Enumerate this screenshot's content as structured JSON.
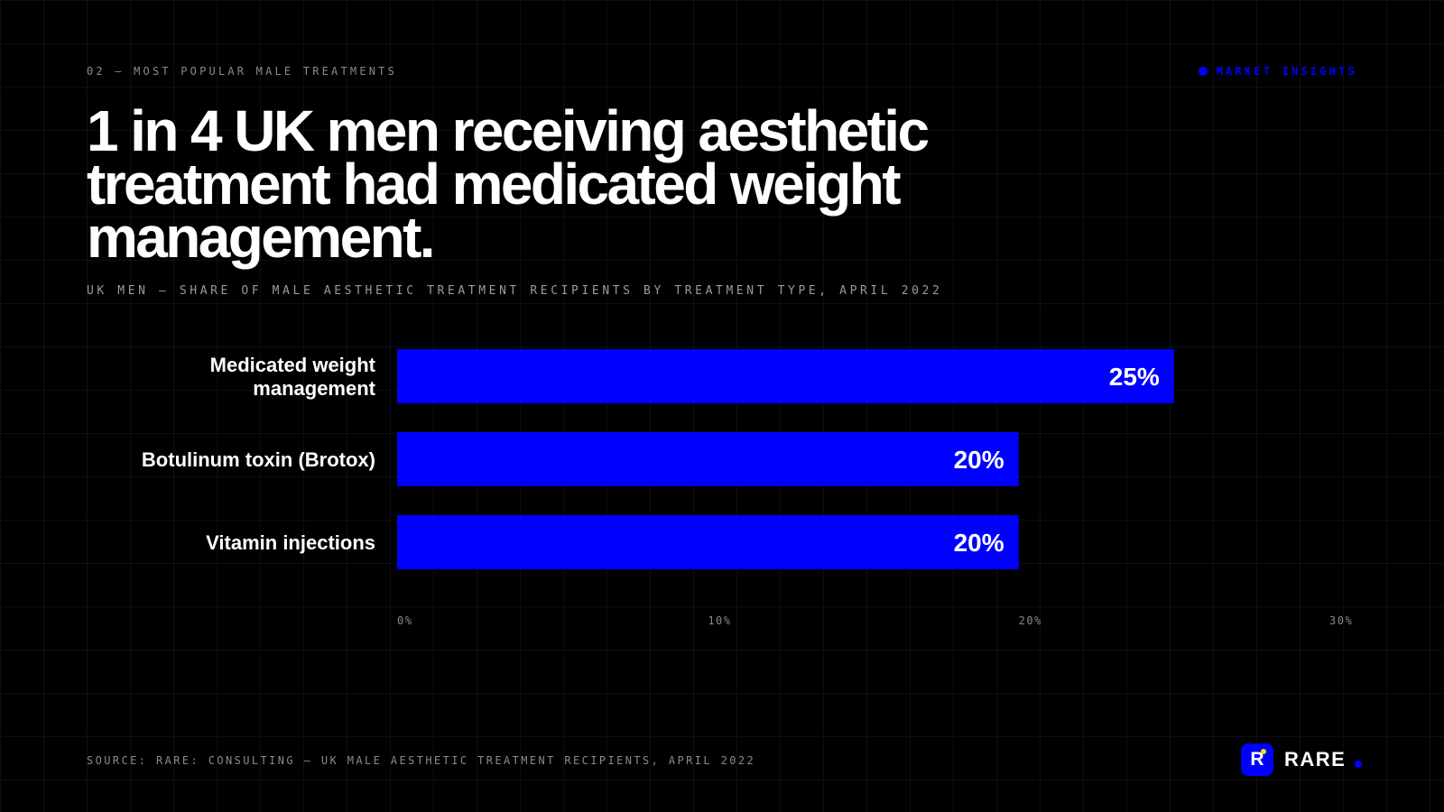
{
  "kicker": "02 — MOST POPULAR MALE TREATMENTS",
  "tag": "MARKET INSIGHTS",
  "headline": "1 in 4 UK men receiving aesthetic treatment had medicated weight management.",
  "subtitle": "UK MEN — SHARE OF MALE AESTHETIC TREATMENT RECIPIENTS BY TREATMENT TYPE, APRIL 2022",
  "source": "SOURCE: RARE: CONSULTING — UK MALE AESTHETIC TREATMENT RECIPIENTS, APRIL 2022",
  "brand": {
    "mark": "R",
    "name": "RARE"
  },
  "colors": {
    "background": "#000000",
    "bar": "#0000ff",
    "accent": "#0000ff",
    "logo_spark": "#f5d90a"
  },
  "chart_data": {
    "type": "bar",
    "orientation": "horizontal",
    "categories": [
      "Medicated weight management",
      "Botulinum toxin (Brotox)",
      "Vitamin injections"
    ],
    "values": [
      25,
      20,
      20
    ],
    "value_labels": [
      "25%",
      "20%",
      "20%"
    ],
    "xlim": [
      0,
      30
    ],
    "xticks": [
      0,
      10,
      20,
      30
    ],
    "xtick_labels": [
      "0%",
      "10%",
      "20%",
      "30%"
    ],
    "grid": true,
    "legend": "none"
  }
}
